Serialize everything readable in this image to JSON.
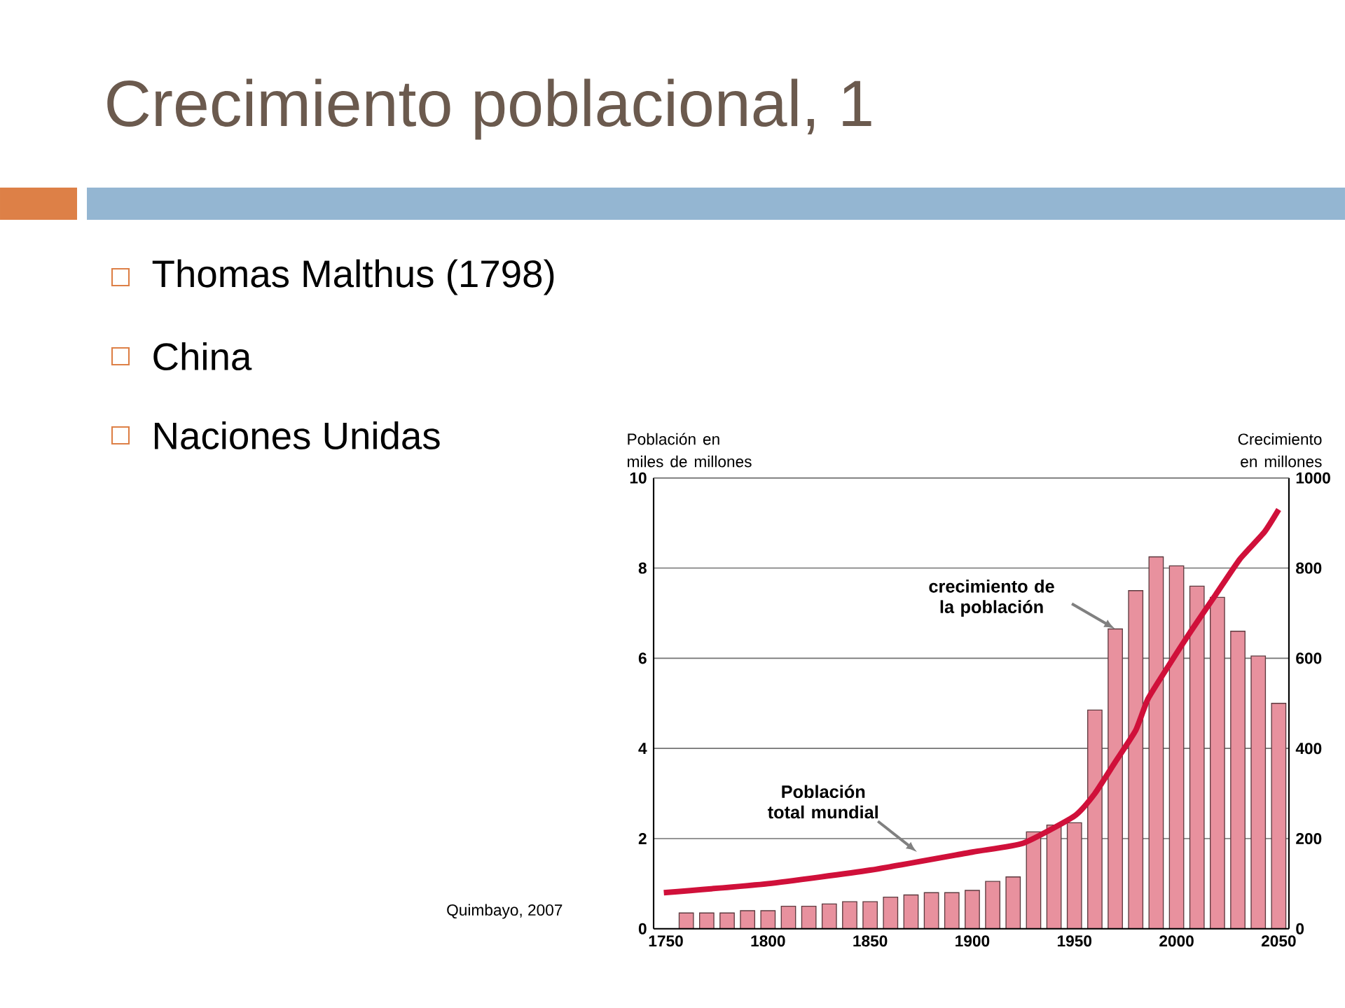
{
  "chart_data": {
    "type": "bar",
    "title": "Crecimiento poblacional, 1",
    "ylabel": "Población en miles de millones",
    "y2label": "Crecimiento en millones",
    "annotations": [
      "Thomas Malthus (1798)",
      "China",
      "Naciones Unidas",
      {
        "text": "crecimiento de la población",
        "x": 1970,
        "y": 6.65
      },
      {
        "text": "Población total mundial",
        "x": 1873,
        "y": 1.7
      },
      "Quimbayo, 2007"
    ],
    "x": [
      1760,
      1770,
      1780,
      1790,
      1800,
      1810,
      1820,
      1830,
      1840,
      1850,
      1860,
      1870,
      1880,
      1890,
      1900,
      1910,
      1920,
      1930,
      1940,
      1950,
      1960,
      1970,
      1980,
      1990,
      2000,
      2010,
      2020,
      2030,
      2040,
      2050
    ],
    "series": [
      {
        "axis": "y2",
        "color": "#e8919e",
        "values": [
          35,
          35,
          35,
          40,
          40,
          50,
          50,
          55,
          60,
          60,
          70,
          75,
          80,
          80,
          85,
          105,
          115,
          215,
          230,
          235,
          485,
          665,
          750,
          825,
          805,
          760,
          735,
          660,
          605,
          500
        ]
      },
      {
        "type": "line",
        "color": "#d0103a",
        "x": [
          1749,
          1800,
          1850,
          1900,
          1925,
          1950,
          1960,
          1970,
          1980,
          1986,
          1997,
          2007,
          2019,
          2031,
          2043,
          2050
        ],
        "values": [
          0.8,
          1.0,
          1.3,
          1.7,
          1.9,
          2.5,
          3.0,
          3.7,
          4.4,
          5.1,
          5.9,
          6.6,
          7.4,
          8.2,
          8.8,
          9.3
        ]
      }
    ],
    "xlim": [
      1744,
      2055
    ],
    "xticks": [
      1750,
      1800,
      1850,
      1900,
      1950,
      2000,
      2050
    ],
    "ylim": [
      0,
      10
    ],
    "yticks": [
      0,
      2,
      4,
      6,
      8,
      10
    ],
    "y2lim": [
      0,
      1000
    ],
    "y2ticks": [
      0,
      200,
      400,
      600,
      800,
      1000
    ],
    "grid": "y"
  }
}
